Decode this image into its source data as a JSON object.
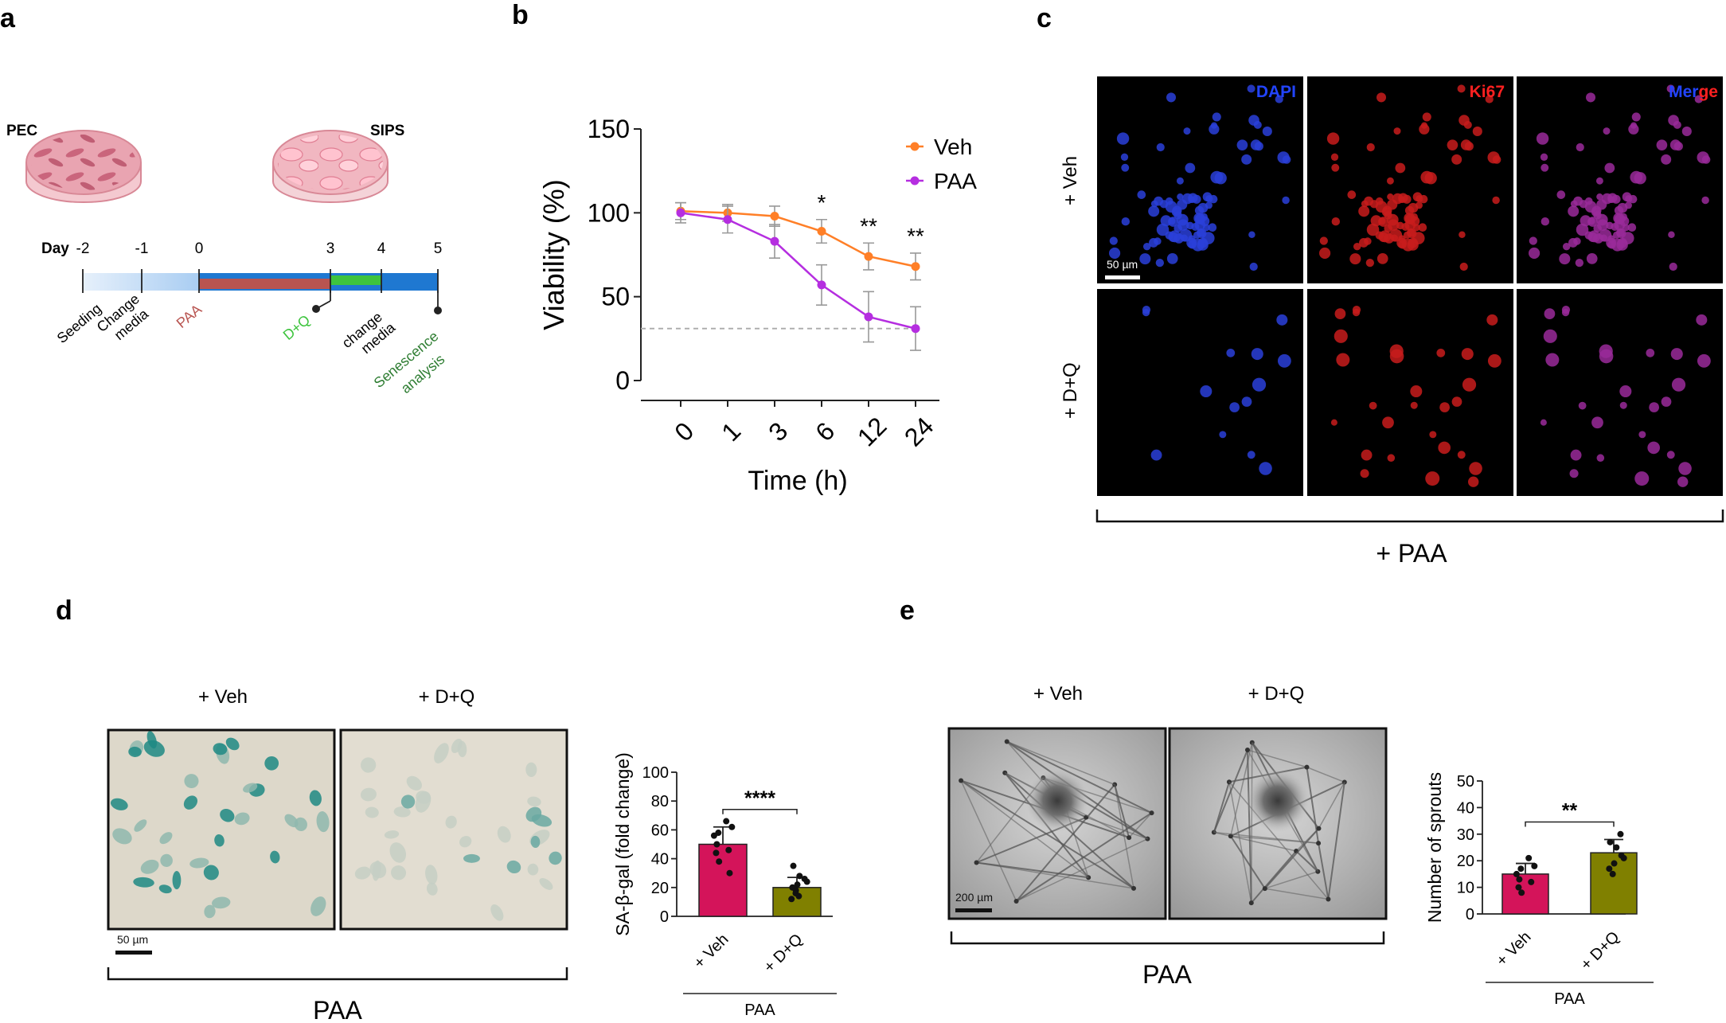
{
  "panels": {
    "a": {
      "letter": "a",
      "dish_left_label": "PEC",
      "dish_right_label": "SIPS",
      "day_label": "Day",
      "ticks": [
        "-2",
        "-1",
        "0",
        "3",
        "4",
        "5"
      ],
      "events": {
        "seeding": "Seeding",
        "change_media_1": [
          "Change",
          "media"
        ],
        "paa": "PAA",
        "dq": "D+Q",
        "change_media_2": [
          "change",
          "media"
        ],
        "senescence": [
          "Senescence",
          "analysis"
        ]
      },
      "colors": {
        "paa": "#b85450",
        "dq": "#3ec43e",
        "timeline": "#1f78d1",
        "senescence": "#2e7d32"
      }
    },
    "b": {
      "letter": "b",
      "significance": [
        "*",
        "**",
        "**"
      ]
    },
    "c": {
      "letter": "c",
      "channels": [
        "DAPI",
        "Ki67",
        "Merge"
      ],
      "merge_parts": [
        "Mer",
        "ge"
      ],
      "rows": [
        "+ Veh",
        "+ D+Q"
      ],
      "scale_bar": "50 µm",
      "bracket_label": "+ PAA",
      "colors": {
        "dapi": "#2244ff",
        "ki67": "#ff2020"
      }
    },
    "d": {
      "letter": "d",
      "image_labels": [
        "+ Veh",
        "+ D+Q"
      ],
      "scale_bar": "50 µm",
      "bracket_label": "PAA",
      "group_label": "PAA",
      "significance": "****"
    },
    "e": {
      "letter": "e",
      "image_labels": [
        "+ Veh",
        "+ D+Q"
      ],
      "scale_bar": "200 µm",
      "bracket_label": "PAA",
      "group_label": "PAA",
      "significance": "**"
    }
  },
  "chart_data": [
    {
      "id": "viability",
      "type": "line",
      "x": [
        "0",
        "1",
        "3",
        "6",
        "12",
        "24"
      ],
      "xlabel": "Time (h)",
      "ylabel": "Viability (%)",
      "ylim": [
        0,
        150
      ],
      "yticks": [
        0,
        50,
        100,
        150
      ],
      "reference_line": 31,
      "legend_placement": "top-right",
      "series": [
        {
          "name": "Veh",
          "color": "#ff7f27",
          "values": [
            101,
            100,
            98,
            89,
            74,
            68
          ],
          "err": [
            5,
            5,
            6,
            7,
            8,
            8
          ]
        },
        {
          "name": "PAA",
          "color": "#b52ee0",
          "values": [
            100,
            96,
            83,
            57,
            38,
            31
          ],
          "err": [
            6,
            8,
            10,
            12,
            15,
            13
          ]
        }
      ]
    },
    {
      "id": "sa-beta-gal",
      "type": "bar",
      "categories": [
        "+ Veh",
        "+ D+Q"
      ],
      "values": [
        50,
        20
      ],
      "err": [
        12,
        7
      ],
      "colors": [
        "#d4145a",
        "#808000"
      ],
      "ylabel": "SA-β-gal (fold change)",
      "ylim": [
        0,
        100
      ],
      "yticks": [
        0,
        20,
        40,
        60,
        80,
        100
      ],
      "points": [
        [
          66,
          62,
          58,
          56,
          50,
          46,
          44,
          38,
          30
        ],
        [
          35,
          28,
          26,
          24,
          22,
          20,
          18,
          16,
          14,
          12
        ]
      ]
    },
    {
      "id": "sprouts",
      "type": "bar",
      "categories": [
        "+ Veh",
        "+ D+Q"
      ],
      "values": [
        15,
        23
      ],
      "err": [
        4,
        5
      ],
      "colors": [
        "#d4145a",
        "#808000"
      ],
      "ylabel": "Number of sprouts",
      "ylim": [
        0,
        50
      ],
      "yticks": [
        0,
        10,
        20,
        30,
        40,
        50
      ],
      "points": [
        [
          21,
          18,
          17,
          15,
          13,
          12,
          10,
          8
        ],
        [
          30,
          27,
          25,
          22,
          21,
          19,
          17,
          15
        ]
      ]
    }
  ]
}
